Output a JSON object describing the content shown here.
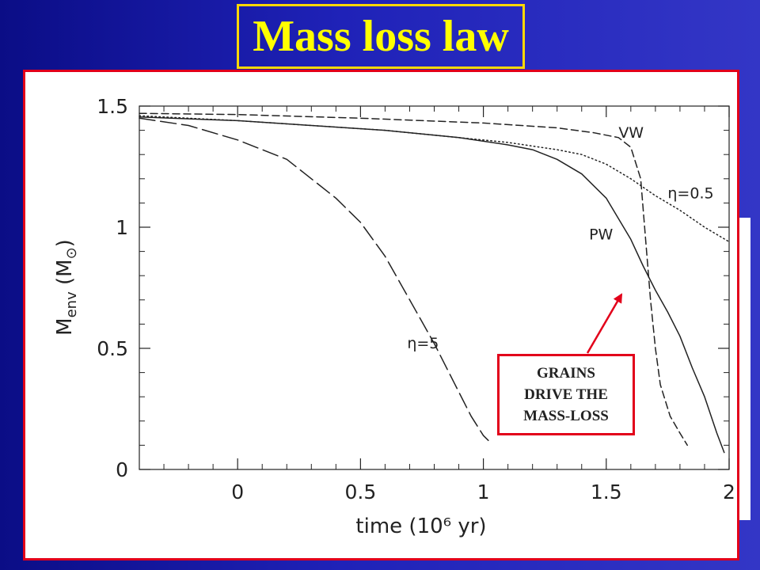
{
  "slide": {
    "title": "Mass loss law",
    "callout": "GRAINS\nDRIVE THE\nMASS-LOSS"
  },
  "chart_data": {
    "type": "line",
    "title": "",
    "xlabel": "time  (10⁶ yr)",
    "ylabel_main": "M",
    "ylabel_sub": "env",
    "ylabel_unit_open": "  (M",
    "ylabel_unit_sym": "⊙",
    "ylabel_unit_close": ")",
    "xlim": [
      -0.4,
      2.0
    ],
    "ylim": [
      0,
      1.5
    ],
    "xticks": [
      0,
      0.5,
      1,
      1.5,
      2
    ],
    "xtick_labels": [
      "0",
      "0.5",
      "1",
      "1.5",
      "2"
    ],
    "yticks": [
      0,
      0.5,
      1,
      1.5
    ],
    "ytick_labels": [
      "0",
      "0.5",
      "1",
      "1.5"
    ],
    "grid": false,
    "series": [
      {
        "name": "VW",
        "style": "dashed",
        "x": [
          -0.4,
          0.0,
          0.5,
          1.0,
          1.3,
          1.45,
          1.55,
          1.6,
          1.64,
          1.66,
          1.68,
          1.7,
          1.72,
          1.76,
          1.8,
          1.83
        ],
        "y": [
          1.47,
          1.465,
          1.45,
          1.43,
          1.41,
          1.39,
          1.37,
          1.33,
          1.2,
          0.95,
          0.7,
          0.5,
          0.35,
          0.22,
          0.15,
          0.1
        ]
      },
      {
        "name": "η=0.5",
        "style": "dotted",
        "x": [
          -0.4,
          0.0,
          0.3,
          0.6,
          0.9,
          1.1,
          1.3,
          1.4,
          1.5,
          1.6,
          1.7,
          1.8,
          1.9,
          2.0
        ],
        "y": [
          1.46,
          1.44,
          1.42,
          1.4,
          1.37,
          1.35,
          1.32,
          1.3,
          1.26,
          1.2,
          1.13,
          1.07,
          1.0,
          0.94
        ]
      },
      {
        "name": "PW",
        "style": "solid",
        "x": [
          -0.4,
          0.0,
          0.3,
          0.6,
          0.9,
          1.1,
          1.2,
          1.3,
          1.4,
          1.5,
          1.6,
          1.65,
          1.7,
          1.75,
          1.8,
          1.85,
          1.9,
          1.95,
          1.98
        ],
        "y": [
          1.455,
          1.44,
          1.42,
          1.4,
          1.37,
          1.34,
          1.32,
          1.28,
          1.22,
          1.12,
          0.95,
          0.84,
          0.74,
          0.65,
          0.55,
          0.42,
          0.3,
          0.15,
          0.07
        ]
      },
      {
        "name": "η=5",
        "style": "longdash",
        "x": [
          -0.4,
          -0.2,
          0.0,
          0.2,
          0.4,
          0.5,
          0.6,
          0.7,
          0.8,
          0.88,
          0.95,
          1.0,
          1.02
        ],
        "y": [
          1.45,
          1.42,
          1.36,
          1.28,
          1.12,
          1.02,
          0.88,
          0.7,
          0.52,
          0.36,
          0.22,
          0.14,
          0.12
        ]
      }
    ],
    "annotations": [
      {
        "text": "VW",
        "x": 1.55,
        "y": 1.37
      },
      {
        "text": "η=0.5",
        "x": 1.75,
        "y": 1.12
      },
      {
        "text": "PW",
        "x": 1.43,
        "y": 0.95
      },
      {
        "text": "η=5",
        "x": 0.69,
        "y": 0.5
      }
    ]
  }
}
